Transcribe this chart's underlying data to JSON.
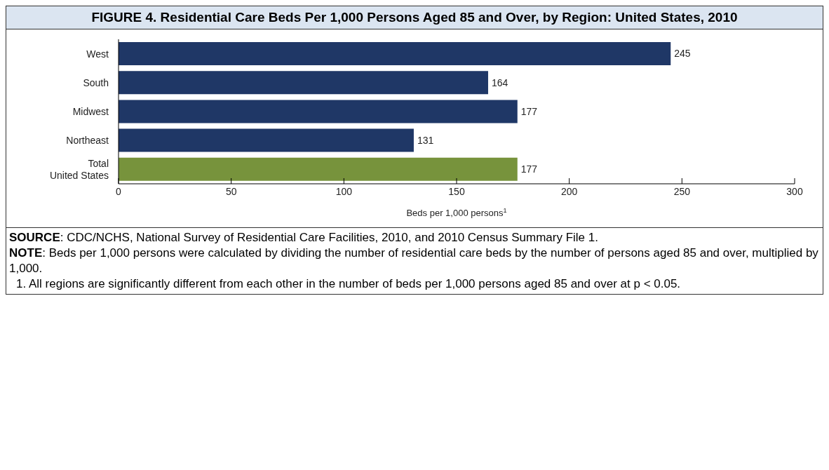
{
  "chart_data": {
    "type": "bar",
    "orientation": "horizontal",
    "title": "FIGURE 4. Residential Care Beds Per 1,000 Persons Aged 85 and Over, by Region: United States, 2010",
    "categories": [
      "West",
      "South",
      "Midwest",
      "Northeast",
      "Total\nUnited States"
    ],
    "values": [
      245,
      164,
      177,
      131,
      177
    ],
    "colors": [
      "#1f3766",
      "#1f3766",
      "#1f3766",
      "#1f3766",
      "#77933c"
    ],
    "xlim": [
      0,
      300
    ],
    "xticks": [
      0,
      50,
      100,
      150,
      200,
      250,
      300
    ],
    "xlabel": "Beds per 1,000 persons$^{1}$",
    "data_labels": true,
    "grid": false,
    "legend": false,
    "annotations": [
      "SOURCE: CDC/NCHS, National Survey of Residential Care Facilities, 2010, and 2010 Census Summary File 1.",
      "NOTE: Beds per 1,000 persons were calculated by dividing the number of residential care beds by the number of persons aged 85 and over, multiplied by 1,000.",
      "1. All regions are significantly different from each other in the number of beds per 1,000 persons aged 85 and over at p < 0.05."
    ]
  }
}
